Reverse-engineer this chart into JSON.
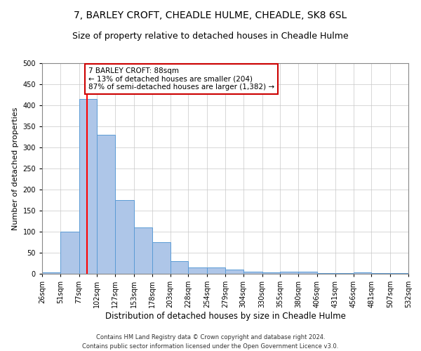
{
  "title": "7, BARLEY CROFT, CHEADLE HULME, CHEADLE, SK8 6SL",
  "subtitle": "Size of property relative to detached houses in Cheadle Hulme",
  "xlabel": "Distribution of detached houses by size in Cheadle Hulme",
  "ylabel": "Number of detached properties",
  "footer_line1": "Contains HM Land Registry data © Crown copyright and database right 2024.",
  "footer_line2": "Contains public sector information licensed under the Open Government Licence v3.0.",
  "bar_edges": [
    26,
    51,
    77,
    102,
    127,
    153,
    178,
    203,
    228,
    254,
    279,
    304,
    330,
    355,
    380,
    406,
    431,
    456,
    481,
    507,
    532
  ],
  "bar_heights": [
    3,
    100,
    415,
    330,
    175,
    110,
    75,
    30,
    15,
    15,
    10,
    5,
    3,
    5,
    5,
    1,
    1,
    3,
    1,
    1
  ],
  "bar_color": "#aec6e8",
  "bar_edge_color": "#5b9bd5",
  "red_line_x": 88,
  "annotation_text": "7 BARLEY CROFT: 88sqm\n← 13% of detached houses are smaller (204)\n87% of semi-detached houses are larger (1,382) →",
  "annotation_box_color": "#ffffff",
  "annotation_box_edge_color": "#cc0000",
  "ylim": [
    0,
    500
  ],
  "yticks": [
    0,
    50,
    100,
    150,
    200,
    250,
    300,
    350,
    400,
    450,
    500
  ],
  "title_fontsize": 10,
  "subtitle_fontsize": 9,
  "xlabel_fontsize": 8.5,
  "ylabel_fontsize": 8,
  "annotation_fontsize": 7.5,
  "tick_fontsize": 7,
  "footer_fontsize": 6,
  "background_color": "#ffffff",
  "grid_color": "#c8c8c8"
}
